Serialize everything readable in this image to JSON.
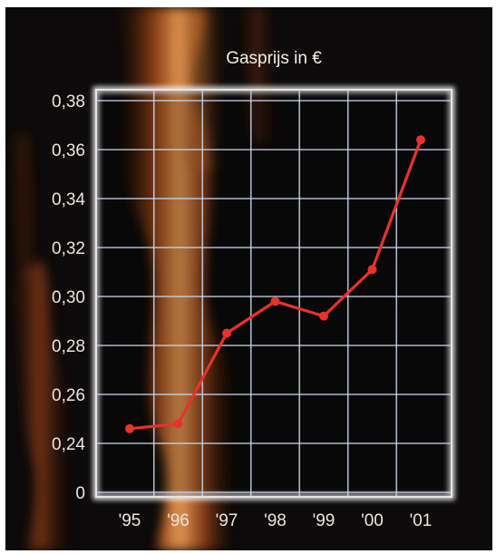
{
  "chart_data": {
    "type": "line",
    "title": "Gasprijs in €",
    "categories": [
      "'95",
      "'96",
      "'97",
      "'98",
      "'99",
      "'00",
      "'01"
    ],
    "series": [
      {
        "values": [
          0.246,
          0.248,
          0.285,
          0.298,
          0.292,
          0.311,
          0.364
        ]
      }
    ],
    "y_ticks": [
      "0",
      "0,24",
      "0,26",
      "0,28",
      "0,30",
      "0,32",
      "0,34",
      "0,36",
      "0,38"
    ],
    "y_tick_values": [
      0.22,
      0.24,
      0.26,
      0.28,
      0.3,
      0.32,
      0.34,
      0.36,
      0.38
    ],
    "ylim": [
      0.22,
      0.38
    ],
    "y_axis_break": "0",
    "grid": true,
    "xlabel": "",
    "ylabel": "",
    "colors": {
      "line": "#e8322b",
      "grid": "#c9d7ef",
      "background": "#0c0a0a",
      "frame": "#e6e6e6",
      "text": "#ece6de"
    }
  }
}
